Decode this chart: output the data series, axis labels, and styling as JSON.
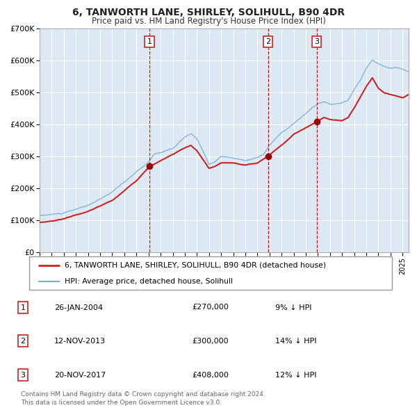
{
  "title": "6, TANWORTH LANE, SHIRLEY, SOLIHULL, B90 4DR",
  "subtitle": "Price paid vs. HM Land Registry's House Price Index (HPI)",
  "background_color": "#ffffff",
  "plot_bg_color": "#dce9f5",
  "hpi_line_color": "#7aadd4",
  "price_line_color": "#cc2222",
  "price_dot_color": "#990000",
  "vline_color": "#cc0000",
  "grid_color": "#ffffff",
  "purchases": [
    {
      "date_num": 2004.07,
      "price": 270000,
      "label": "1"
    },
    {
      "date_num": 2013.87,
      "price": 300000,
      "label": "2"
    },
    {
      "date_num": 2017.9,
      "price": 408000,
      "label": "3"
    }
  ],
  "vline_dates": [
    2004.07,
    2013.87,
    2017.9
  ],
  "xmin": 1995.0,
  "xmax": 2025.5,
  "ymin": 0,
  "ymax": 700000,
  "yticks": [
    0,
    100000,
    200000,
    300000,
    400000,
    500000,
    600000,
    700000
  ],
  "ytick_labels": [
    "£0",
    "£100K",
    "£200K",
    "£300K",
    "£400K",
    "£500K",
    "£600K",
    "£700K"
  ],
  "legend_entries": [
    {
      "label": "6, TANWORTH LANE, SHIRLEY, SOLIHULL, B90 4DR (detached house)",
      "color": "#cc2222",
      "lw": 2
    },
    {
      "label": "HPI: Average price, detached house, Solihull",
      "color": "#7aadd4",
      "lw": 1.5
    }
  ],
  "table_data": [
    {
      "num": "1",
      "date": "26-JAN-2004",
      "price": "£270,000",
      "hpi": "9% ↓ HPI"
    },
    {
      "num": "2",
      "date": "12-NOV-2013",
      "price": "£300,000",
      "hpi": "14% ↓ HPI"
    },
    {
      "num": "3",
      "date": "20-NOV-2017",
      "price": "£408,000",
      "hpi": "12% ↓ HPI"
    }
  ],
  "footer": "Contains HM Land Registry data © Crown copyright and database right 2024.\nThis data is licensed under the Open Government Licence v3.0."
}
